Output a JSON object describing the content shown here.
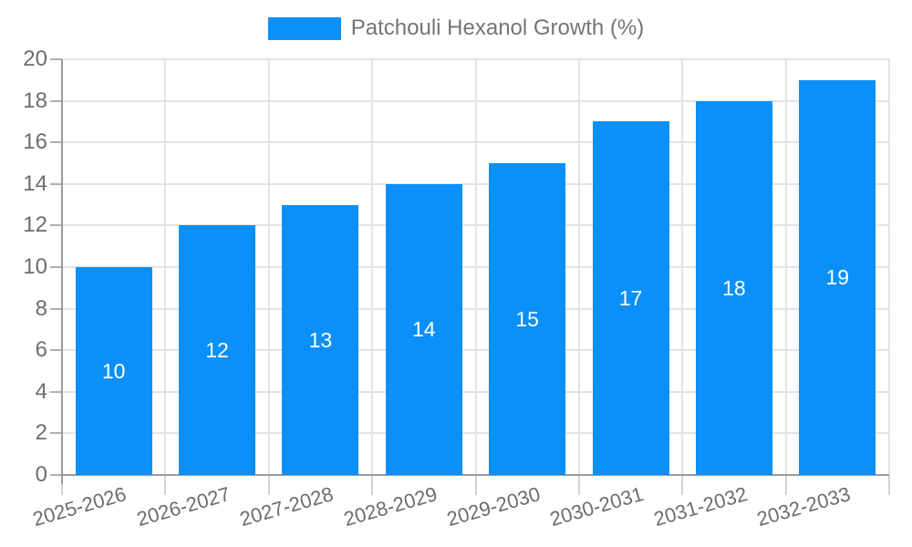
{
  "legend": {
    "label": "Patchouli Hexanol Growth (%)"
  },
  "colors": {
    "bar": "#0a90f8",
    "grid": "#e3e3e3",
    "axis": "#9a9a9a",
    "ytick": "#b0b0b0",
    "xtick": "#d2d2d2",
    "axis_text": "#6d6d6d",
    "legend_text": "#757575",
    "bar_label_text": "#ffffff",
    "background": "#ffffff"
  },
  "chart_data": {
    "type": "bar",
    "title": "",
    "series_name": "Patchouli Hexanol Growth (%)",
    "categories": [
      "2025-2026",
      "2026-2027",
      "2027-2028",
      "2028-2029",
      "2029-2030",
      "2030-2031",
      "2031-2032",
      "2032-2033"
    ],
    "values": [
      10,
      12,
      13,
      14,
      15,
      17,
      18,
      19
    ],
    "value_labels": [
      "10",
      "12",
      "13",
      "14",
      "15",
      "17",
      "18",
      "19"
    ],
    "value_label_position": "inside-center",
    "xlabel": "",
    "ylabel": "",
    "ylim": [
      0,
      20
    ],
    "yticks": [
      0,
      2,
      4,
      6,
      8,
      10,
      12,
      14,
      16,
      18,
      20
    ],
    "grid": "on",
    "legend_position": "top-center",
    "x_label_rotation_deg": -16
  }
}
